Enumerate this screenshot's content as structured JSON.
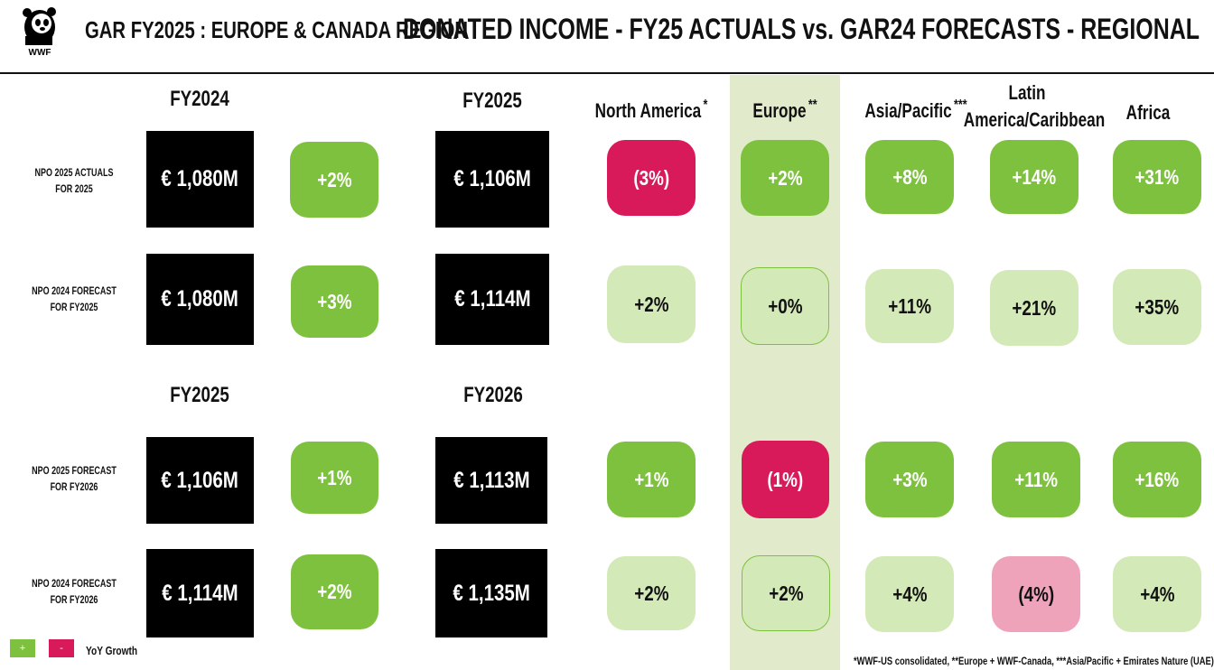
{
  "header": {
    "logo_text": "WWF",
    "region_title": "GAR FY2025 : EUROPE & CANADA REGION",
    "main_title": "DONATED INCOME - FY25 ACTUALS vs. GAR24 FORECASTS - REGIONAL"
  },
  "top_years": {
    "left": "FY2024",
    "right": "FY2025"
  },
  "bottom_years": {
    "left": "FY2025",
    "right": "FY2026"
  },
  "regions": [
    {
      "name": "North America",
      "mark": "*"
    },
    {
      "name": "Europe",
      "mark": "**"
    },
    {
      "name": "Asia/Pacific",
      "mark": "***"
    },
    {
      "name_line1": "Latin",
      "name_line2": "America/Caribbean"
    },
    {
      "name": "Africa"
    }
  ],
  "rows": [
    {
      "label_line1": "NPO 2025 ACTUALS",
      "label_line2": "FOR 2025",
      "base": "€ 1,080M",
      "growth": "+2%",
      "target": "€ 1,106M",
      "regions": [
        "(3%)",
        "+2%",
        "+8%",
        "+14%",
        "+31%"
      ]
    },
    {
      "label_line1": "NPO 2024 FORECAST",
      "label_line2": "FOR FY2025",
      "base": "€ 1,080M",
      "growth": "+3%",
      "target": "€ 1,114M",
      "regions": [
        "+2%",
        "+0%",
        "+11%",
        "+21%",
        "+35%"
      ]
    },
    {
      "label_line1": "NPO 2025 FORECAST",
      "label_line2": "FOR FY2026",
      "base": "€ 1,106M",
      "growth": "+1%",
      "target": "€ 1,113M",
      "regions": [
        "+1%",
        "(1%)",
        "+3%",
        "+11%",
        "+16%"
      ]
    },
    {
      "label_line1": "NPO 2024 FORECAST",
      "label_line2": "FOR FY2026",
      "base": "€ 1,114M",
      "growth": "+2%",
      "target": "€ 1,135M",
      "regions": [
        "+2%",
        "+2%",
        "+4%",
        "(4%)",
        "+4%"
      ]
    }
  ],
  "legend": {
    "positive": "+",
    "negative": "-",
    "label": "YoY Growth"
  },
  "footnote": "*WWF-US consolidated, **Europe + WWF-Canada, ***Asia/Pacific + Emirates Nature (UAE)",
  "colors": {
    "growth_green": "#7ec13f",
    "light_green": "#d4e9b8",
    "decline_red": "#d81a5a",
    "light_pink": "#eea3bb",
    "europe_band": "#e1ebcb"
  }
}
